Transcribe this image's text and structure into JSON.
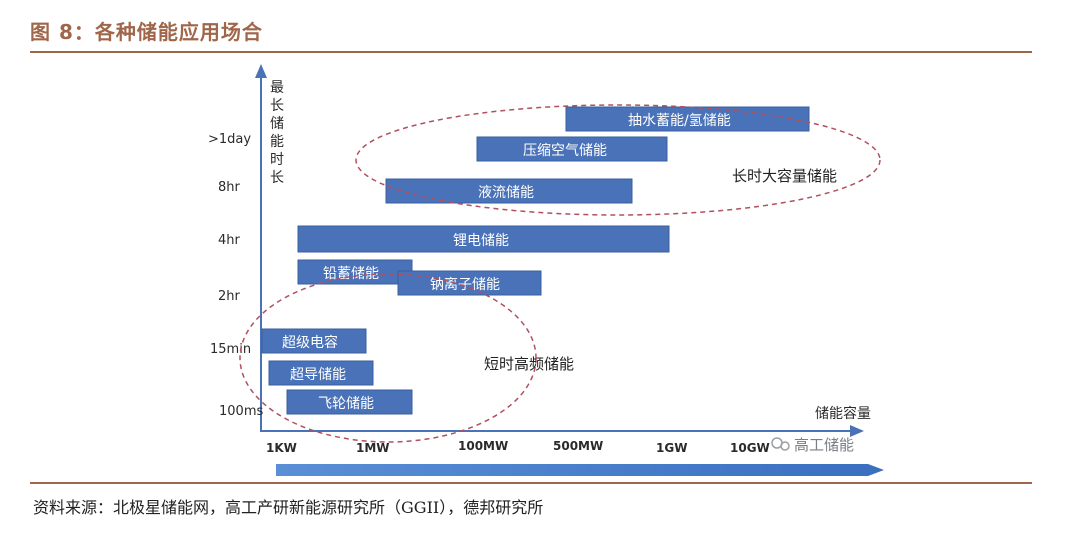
{
  "figure_title": "图 8：各种储能应用场合",
  "source": "资料来源：北极星储能网，高工产研新能源研究所（GGII），德邦研究所",
  "y_axis": {
    "label_chars": [
      "最",
      "长",
      "储",
      "能",
      "时",
      "长"
    ],
    "ticks": [
      "100ms",
      "15min",
      "2hr",
      "4hr",
      "8hr",
      ">1day"
    ]
  },
  "x_axis": {
    "label": "储能容量",
    "ticks": [
      "1KW",
      "1MW",
      "100MW",
      "500MW",
      "1GW",
      "10GW"
    ]
  },
  "bars": [
    {
      "label": "抽水蓄能/氢储能"
    },
    {
      "label": "压缩空气储能"
    },
    {
      "label": "液流储能"
    },
    {
      "label": "锂电储能"
    },
    {
      "label": "铅蓄储能"
    },
    {
      "label": "钠离子储能"
    },
    {
      "label": "超级电容"
    },
    {
      "label": "超导储能"
    },
    {
      "label": "飞轮储能"
    }
  ],
  "groups": [
    {
      "label": "长时大容量储能"
    },
    {
      "label": "短时高频储能"
    }
  ],
  "watermark": "高工储能",
  "colors": {
    "bar": "#4a72b8",
    "bar_border": "#3a5f9f",
    "ellipse": "#b05060",
    "axis": "#4a72b8",
    "title": "#a0664a"
  }
}
